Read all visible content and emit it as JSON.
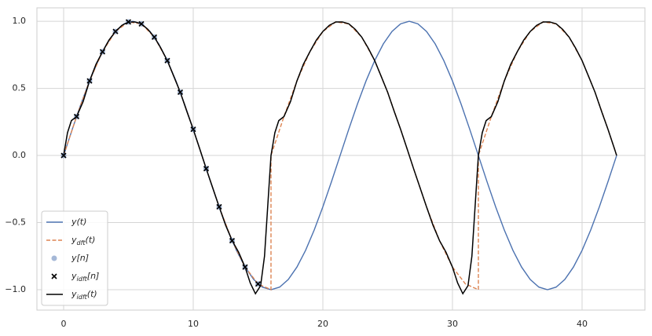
{
  "chart_data": {
    "type": "line",
    "xlim": [
      -2.06,
      44.85
    ],
    "ylim": [
      -1.152,
      1.1
    ],
    "xticks": [
      0,
      10,
      20,
      30,
      40
    ],
    "yticks": [
      {
        "value": -1,
        "label": "−1.0"
      },
      {
        "value": -0.5,
        "label": "−0.5"
      },
      {
        "value": 0,
        "label": "0.0"
      },
      {
        "value": 0.5,
        "label": "0.5"
      },
      {
        "value": 1,
        "label": "1.0"
      }
    ],
    "grid": true,
    "legend": "lower left",
    "series": [
      {
        "name": "y(t)",
        "type": "line",
        "style": "solid",
        "color": "#4c72b0",
        "x": [
          0,
          0.667,
          1.333,
          2,
          2.667,
          3.333,
          4,
          4.667,
          5.333,
          6,
          6.667,
          7.333,
          8,
          8.667,
          9.333,
          10,
          10.667,
          11.333,
          12,
          12.667,
          13.333,
          14,
          14.667,
          15.333,
          16,
          16.667,
          17.333,
          18,
          18.667,
          19.333,
          20,
          20.667,
          21.333,
          22,
          22.667,
          23.333,
          24,
          24.667,
          25.333,
          26,
          26.667,
          27.333,
          28,
          28.667,
          29.333,
          30,
          30.667,
          31.333,
          32,
          32.667,
          33.333,
          34,
          34.667,
          35.333,
          36,
          36.667,
          37.333,
          38,
          38.667,
          39.333,
          40,
          40.667,
          41.333,
          42,
          42.667
        ],
        "values": [
          0,
          0.1951,
          0.3827,
          0.5556,
          0.7071,
          0.8315,
          0.9239,
          0.9808,
          1,
          0.9808,
          0.9239,
          0.8315,
          0.7071,
          0.5556,
          0.3827,
          0.1951,
          0,
          -0.1951,
          -0.3827,
          -0.5556,
          -0.7071,
          -0.8315,
          -0.9239,
          -0.9808,
          -1,
          -0.9808,
          -0.9239,
          -0.8315,
          -0.7071,
          -0.5556,
          -0.3827,
          -0.1951,
          0,
          0.1951,
          0.3827,
          0.5556,
          0.7071,
          0.8315,
          0.9239,
          0.9808,
          1,
          0.9808,
          0.9239,
          0.8315,
          0.7071,
          0.5556,
          0.3827,
          0.1951,
          0,
          -0.1951,
          -0.3827,
          -0.5556,
          -0.7071,
          -0.8315,
          -0.9239,
          -0.9808,
          -1,
          -0.9808,
          -0.9239,
          -0.8315,
          -0.7071,
          -0.5556,
          -0.3827,
          -0.1951,
          0
        ]
      },
      {
        "name": "y_dft(t)",
        "type": "line",
        "style": "dashed",
        "color": "#dd8452",
        "x": [
          0,
          1,
          2,
          3,
          4,
          5,
          6,
          7,
          8,
          9,
          10,
          11,
          12,
          13,
          14,
          15,
          16,
          16,
          17,
          18,
          19,
          20,
          21,
          22,
          23,
          24,
          25,
          26,
          27,
          28,
          29,
          30,
          31,
          32,
          32,
          33,
          34,
          35,
          36,
          37,
          38,
          39,
          40,
          41,
          42,
          42.667
        ],
        "values": [
          0,
          0.2903,
          0.5556,
          0.773,
          0.9239,
          0.9952,
          0.9808,
          0.8819,
          0.7071,
          0.4714,
          0.1951,
          -0.098,
          -0.3827,
          -0.6344,
          -0.8315,
          -0.9569,
          -1,
          0,
          0.2903,
          0.5556,
          0.773,
          0.9239,
          0.9952,
          0.9808,
          0.8819,
          0.7071,
          0.4714,
          0.1951,
          -0.098,
          -0.3827,
          -0.6344,
          -0.8315,
          -0.9569,
          -1,
          0,
          0.2903,
          0.5556,
          0.773,
          0.9239,
          0.9952,
          0.9808,
          0.8819,
          0.7071,
          0.4714,
          0.1951,
          0
        ]
      },
      {
        "name": "y[n]",
        "type": "scatter",
        "marker": "o",
        "color": "#4c72b0",
        "x": [
          0,
          1,
          2,
          3,
          4,
          5,
          6,
          7,
          8,
          9,
          10,
          11,
          12,
          13,
          14,
          15
        ],
        "values": [
          0,
          0.2903,
          0.5556,
          0.773,
          0.9239,
          0.9952,
          0.9808,
          0.8819,
          0.7071,
          0.4714,
          0.1951,
          -0.098,
          -0.3827,
          -0.6344,
          -0.8315,
          -0.9569
        ]
      },
      {
        "name": "y_idft[n]",
        "type": "scatter",
        "marker": "x",
        "color": "#000000",
        "x": [
          0,
          1,
          2,
          3,
          4,
          5,
          6,
          7,
          8,
          9,
          10,
          11,
          12,
          13,
          14,
          15
        ],
        "values": [
          0,
          0.2903,
          0.5556,
          0.773,
          0.9239,
          0.9952,
          0.9808,
          0.8819,
          0.7071,
          0.4714,
          0.1951,
          -0.098,
          -0.3827,
          -0.6344,
          -0.8315,
          -0.9569
        ]
      },
      {
        "name": "y_idft(t)",
        "type": "line",
        "style": "solid",
        "color": "#000000",
        "x": [
          0,
          0.3,
          0.6,
          1,
          1.5,
          2,
          2.5,
          3,
          3.5,
          4,
          4.5,
          5,
          5.5,
          6,
          6.5,
          7,
          7.5,
          8,
          8.5,
          9,
          9.5,
          10,
          10.5,
          11,
          11.5,
          12,
          12.5,
          13,
          13.5,
          14,
          14.4,
          14.8,
          15.2,
          15.5,
          15.8,
          16,
          16.3,
          16.6,
          17,
          17.5,
          18,
          18.5,
          19,
          19.5,
          20,
          20.5,
          21,
          21.5,
          22,
          22.5,
          23,
          23.5,
          24,
          24.5,
          25,
          25.5,
          26,
          26.5,
          27,
          27.5,
          28,
          28.5,
          29,
          29.5,
          30,
          30.4,
          30.8,
          31.2,
          31.5,
          31.8,
          32,
          32.3,
          32.6,
          33,
          33.5,
          34,
          34.5,
          35,
          35.5,
          36,
          36.5,
          37,
          37.5,
          38,
          38.5,
          39,
          39.5,
          40,
          40.5,
          41,
          41.5,
          42,
          42.5,
          42.667
        ],
        "values": [
          0,
          0.17,
          0.26,
          0.29,
          0.4,
          0.555,
          0.68,
          0.773,
          0.86,
          0.924,
          0.97,
          0.995,
          0.995,
          0.981,
          0.94,
          0.882,
          0.8,
          0.707,
          0.59,
          0.471,
          0.33,
          0.195,
          0.05,
          -0.098,
          -0.24,
          -0.383,
          -0.52,
          -0.634,
          -0.72,
          -0.832,
          -0.95,
          -1.03,
          -0.97,
          -0.75,
          -0.3,
          0,
          0.17,
          0.26,
          0.29,
          0.4,
          0.555,
          0.68,
          0.773,
          0.86,
          0.924,
          0.97,
          0.995,
          0.995,
          0.981,
          0.94,
          0.882,
          0.8,
          0.707,
          0.59,
          0.471,
          0.33,
          0.195,
          0.05,
          -0.098,
          -0.24,
          -0.383,
          -0.52,
          -0.634,
          -0.72,
          -0.832,
          -0.95,
          -1.03,
          -0.97,
          -0.75,
          -0.3,
          0,
          0.17,
          0.26,
          0.29,
          0.4,
          0.555,
          0.68,
          0.773,
          0.86,
          0.924,
          0.97,
          0.995,
          0.995,
          0.981,
          0.94,
          0.882,
          0.8,
          0.707,
          0.59,
          0.471,
          0.33,
          0.195,
          0.05,
          0
        ]
      }
    ]
  }
}
